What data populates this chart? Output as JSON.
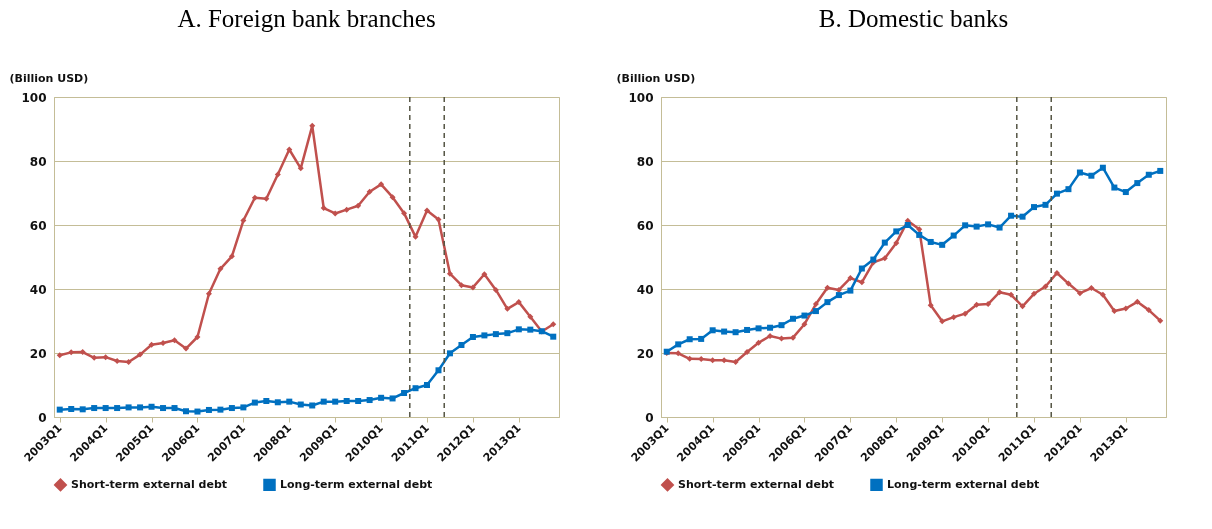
{
  "chart_data": [
    {
      "type": "line",
      "title": "A. Foreign bank branches",
      "ylabel": "(Billion USD)",
      "categories": [
        "2003Q1",
        null,
        null,
        null,
        "2004Q1",
        null,
        null,
        null,
        "2005Q1",
        null,
        null,
        null,
        "2006Q1",
        null,
        null,
        null,
        "2007Q1",
        null,
        null,
        null,
        "2008Q1",
        null,
        null,
        null,
        "2009Q1",
        null,
        null,
        null,
        "2010Q1",
        null,
        null,
        null,
        "2011Q1",
        null,
        null,
        null,
        "2012Q1",
        null,
        null,
        null,
        "2013Q1",
        null,
        null,
        null
      ],
      "series": [
        {
          "name": "Short-term external debt",
          "color": "#c0504d",
          "marker": "diamond",
          "values": [
            19.3,
            20.2,
            20.3,
            18.5,
            18.7,
            17.5,
            17.2,
            19.5,
            22.6,
            23.1,
            24.0,
            21.4,
            25.0,
            38.5,
            46.3,
            50.2,
            61.4,
            68.5,
            68.2,
            75.8,
            83.6,
            77.7,
            91.0,
            65.3,
            63.6,
            64.8,
            66.0,
            70.4,
            72.7,
            68.7,
            63.7,
            56.3,
            64.5,
            61.7,
            44.8,
            41.2,
            40.5,
            44.6,
            39.7,
            33.8,
            35.9,
            31.3,
            26.7,
            29.0
          ]
        },
        {
          "name": "Long-term external debt",
          "color": "#0070c0",
          "marker": "square",
          "values": [
            2.3,
            2.5,
            2.4,
            2.8,
            2.8,
            2.8,
            3.0,
            3.0,
            3.2,
            2.8,
            2.8,
            1.8,
            1.7,
            2.2,
            2.3,
            2.8,
            3.0,
            4.5,
            5.0,
            4.6,
            4.8,
            3.9,
            3.6,
            4.8,
            4.8,
            5.0,
            5.0,
            5.3,
            6.0,
            5.8,
            7.5,
            9.0,
            10.0,
            14.6,
            19.9,
            22.5,
            25.0,
            25.5,
            25.9,
            26.2,
            27.4,
            27.3,
            26.8,
            25.1
          ]
        }
      ],
      "ylim": [
        0,
        100
      ],
      "yticks": [
        0,
        20,
        40,
        60,
        80,
        100
      ],
      "grid": "y",
      "legend": "bottom"
    },
    {
      "type": "line",
      "title": "B. Domestic banks",
      "ylabel": "(Billion USD)",
      "categories": [
        "2003Q1",
        null,
        null,
        null,
        "2004Q1",
        null,
        null,
        null,
        "2005Q1",
        null,
        null,
        null,
        "2006Q1",
        null,
        null,
        null,
        "2007Q1",
        null,
        null,
        null,
        "2008Q1",
        null,
        null,
        null,
        "2009Q1",
        null,
        null,
        null,
        "2010Q1",
        null,
        null,
        null,
        "2011Q1",
        null,
        null,
        null,
        "2012Q1",
        null,
        null,
        null,
        "2013Q1",
        null,
        null,
        null
      ],
      "series": [
        {
          "name": "Short-term external debt",
          "color": "#c0504d",
          "marker": "diamond",
          "values": [
            20.0,
            19.9,
            18.2,
            18.1,
            17.7,
            17.7,
            17.2,
            20.3,
            23.2,
            25.3,
            24.5,
            24.8,
            29.0,
            35.3,
            40.4,
            39.7,
            43.4,
            42.1,
            48.3,
            49.6,
            54.4,
            61.3,
            58.7,
            34.9,
            29.9,
            31.2,
            32.3,
            35.1,
            35.3,
            39.0,
            38.2,
            34.6,
            38.5,
            40.8,
            45.0,
            41.7,
            38.7,
            40.3,
            38.2,
            33.1,
            33.9,
            36.0,
            33.4,
            30.1
          ]
        },
        {
          "name": "Long-term external debt",
          "color": "#0070c0",
          "marker": "square",
          "values": [
            20.4,
            22.7,
            24.3,
            24.4,
            27.1,
            26.7,
            26.5,
            27.2,
            27.7,
            27.9,
            28.7,
            30.7,
            31.7,
            33.1,
            35.9,
            38.1,
            39.5,
            46.4,
            49.2,
            54.5,
            58.0,
            60.0,
            56.9,
            54.7,
            53.8,
            56.7,
            59.9,
            59.5,
            60.2,
            59.2,
            62.9,
            62.6,
            65.6,
            66.3,
            69.8,
            71.2,
            76.4,
            75.4,
            77.9,
            71.7,
            70.3,
            73.1,
            75.7,
            76.9
          ]
        }
      ],
      "ylim": [
        0,
        100
      ],
      "yticks": [
        0,
        20,
        40,
        60,
        80,
        100
      ],
      "grid": "y",
      "legend": "bottom"
    }
  ]
}
